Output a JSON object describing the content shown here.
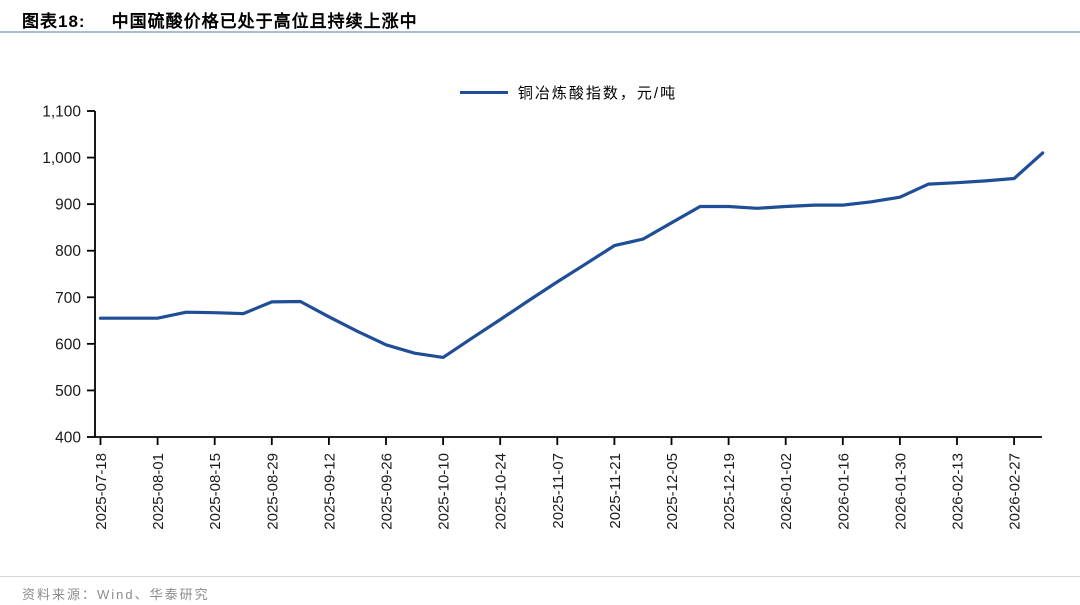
{
  "header": {
    "tag": "图表18:",
    "title": "中国硫酸价格已处于高位且持续上涨中"
  },
  "legend": {
    "label": "铜冶炼酸指数，元/吨"
  },
  "footer": {
    "source": "资料来源：Wind、华泰研究"
  },
  "colors": {
    "line": "#1f4e96",
    "axis": "#000000",
    "tick_text": "#1a1a1a",
    "title_underline": "#a7bdd3",
    "footer_text": "#8c8c8c"
  },
  "chart_data": {
    "type": "line",
    "title": "中国硫酸价格已处于高位且持续上涨中",
    "legend_position": "top-center",
    "grid": false,
    "ylim": [
      400,
      1100
    ],
    "y_ticks": {
      "values": [
        400,
        500,
        600,
        700,
        800,
        900,
        1000,
        1100
      ],
      "labels": [
        "400",
        "500",
        "600",
        "700",
        "800",
        "900",
        "1,000",
        "1,100"
      ]
    },
    "x_tick_every": 2,
    "x_tick_labels": [
      "2025-07-18",
      "2025-08-01",
      "2025-08-15",
      "2025-08-29",
      "2025-09-12",
      "2025-09-26",
      "2025-10-10",
      "2025-10-24",
      "2025-11-07",
      "2025-11-21",
      "2025-12-05",
      "2025-12-19",
      "2026-01-02",
      "2026-01-16",
      "2026-01-30",
      "2026-02-13",
      "2026-02-27"
    ],
    "categories": [
      "2025-07-18",
      "2025-07-25",
      "2025-08-01",
      "2025-08-08",
      "2025-08-15",
      "2025-08-22",
      "2025-08-29",
      "2025-09-05",
      "2025-09-12",
      "2025-09-19",
      "2025-09-26",
      "2025-10-03",
      "2025-10-10",
      "2025-10-17",
      "2025-10-24",
      "2025-10-31",
      "2025-11-07",
      "2025-11-14",
      "2025-11-21",
      "2025-11-28",
      "2025-12-05",
      "2025-12-12",
      "2025-12-19",
      "2025-12-26",
      "2026-01-02",
      "2026-01-09",
      "2026-01-16",
      "2026-01-23",
      "2026-01-30",
      "2026-02-06",
      "2026-02-13",
      "2026-02-20",
      "2026-02-27",
      "2026-03-06"
    ],
    "series": [
      {
        "name": "铜冶炼酸指数，元/吨",
        "color": "#1f4e96",
        "values": [
          655,
          655,
          655,
          668,
          667,
          665,
          690,
          691,
          658,
          627,
          598,
          580,
          571,
          612,
          652,
          693,
          733,
          772,
          811,
          825,
          860,
          895,
          895,
          891,
          895,
          898,
          898,
          905,
          915,
          943,
          946,
          950,
          955,
          1010
        ]
      }
    ]
  }
}
